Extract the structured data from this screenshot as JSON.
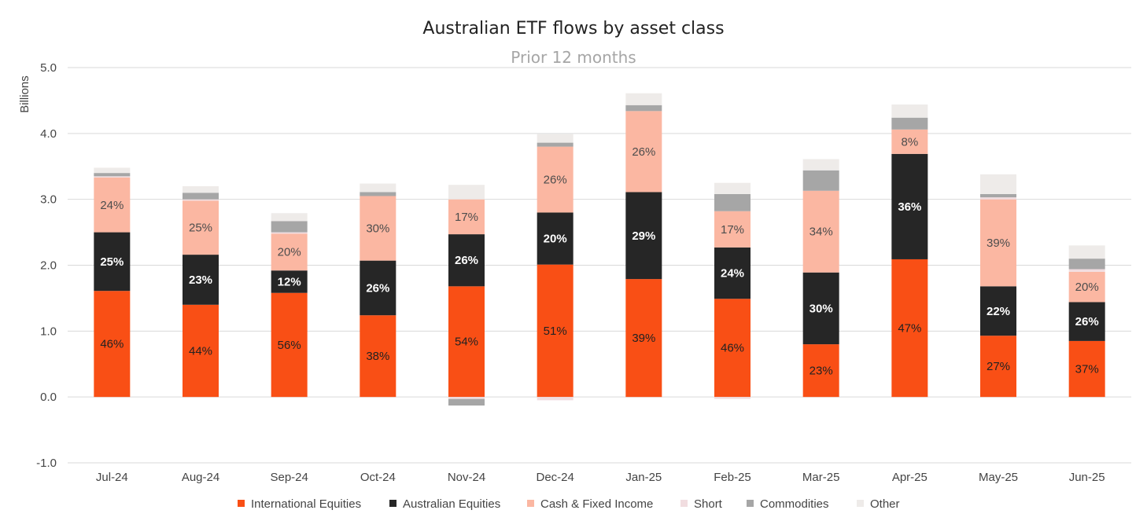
{
  "chart_data": {
    "type": "bar",
    "stacked": true,
    "title": "Australian ETF flows by asset class",
    "subtitle": "Prior 12 months",
    "ylabel": "Billions",
    "ylim": [
      -1.0,
      5.0
    ],
    "yticks": [
      "-1.0",
      "0.0",
      "1.0",
      "2.0",
      "3.0",
      "4.0",
      "5.0"
    ],
    "grid": true,
    "legend_position": "bottom",
    "categories": [
      "Jul-24",
      "Aug-24",
      "Sep-24",
      "Oct-24",
      "Nov-24",
      "Dec-24",
      "Jan-25",
      "Feb-25",
      "Mar-25",
      "Apr-25",
      "May-25",
      "Jun-25"
    ],
    "series": [
      {
        "name": "International Equities",
        "color": "#f94f15",
        "label_color": "#222222",
        "values": [
          1.61,
          1.4,
          1.58,
          1.24,
          1.68,
          2.01,
          1.79,
          1.49,
          0.8,
          2.09,
          0.93,
          0.85
        ],
        "labels": [
          "46%",
          "44%",
          "56%",
          "38%",
          "54%",
          "51%",
          "39%",
          "46%",
          "23%",
          "47%",
          "27%",
          "37%"
        ]
      },
      {
        "name": "Australian Equities",
        "color": "#262626",
        "label_color": "#ffffff",
        "values": [
          0.89,
          0.76,
          0.34,
          0.83,
          0.79,
          0.79,
          1.32,
          0.78,
          1.09,
          1.6,
          0.75,
          0.59
        ],
        "labels": [
          "25%",
          "23%",
          "12%",
          "26%",
          "26%",
          "20%",
          "29%",
          "24%",
          "30%",
          "36%",
          "22%",
          "26%"
        ]
      },
      {
        "name": "Cash & Fixed Income",
        "color": "#fbb7a2",
        "label_color": "#4d4d4d",
        "values": [
          0.83,
          0.82,
          0.56,
          0.98,
          0.53,
          1.0,
          1.23,
          0.55,
          1.24,
          0.37,
          1.32,
          0.46
        ],
        "labels": [
          "24%",
          "25%",
          "20%",
          "30%",
          "17%",
          "26%",
          "26%",
          "17%",
          "34%",
          "8%",
          "39%",
          "20%"
        ]
      },
      {
        "name": "Short",
        "color": "#f1dde0",
        "values": [
          0.02,
          0.02,
          0.02,
          0.0,
          -0.03,
          -0.05,
          0.0,
          -0.03,
          0.0,
          0.0,
          0.03,
          0.04
        ]
      },
      {
        "name": "Commodities",
        "color": "#a6a6a6",
        "values": [
          0.05,
          0.1,
          0.17,
          0.06,
          -0.1,
          0.06,
          0.09,
          0.26,
          0.31,
          0.18,
          0.05,
          0.16
        ]
      },
      {
        "name": "Other",
        "color": "#eeebe9",
        "values": [
          0.08,
          0.1,
          0.12,
          0.13,
          0.22,
          0.13,
          0.18,
          0.17,
          0.17,
          0.2,
          0.3,
          0.2
        ]
      }
    ]
  }
}
